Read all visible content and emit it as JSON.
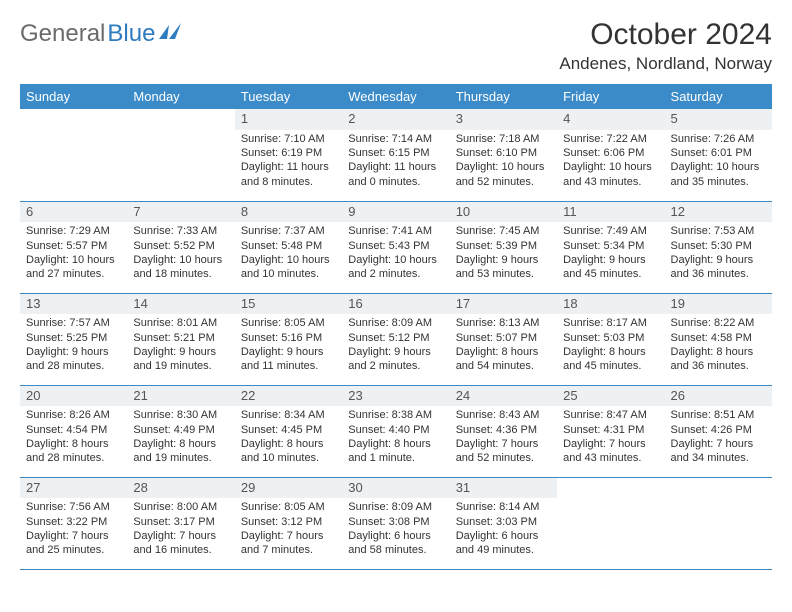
{
  "logo": {
    "word1": "General",
    "word2": "Blue"
  },
  "title": "October 2024",
  "location": "Andenes, Nordland, Norway",
  "colors": {
    "header_bg": "#3b8bc9",
    "header_text": "#ffffff",
    "daynum_bg": "#eef1f3",
    "border": "#3b8bc9",
    "logo_gray": "#6b6b6b",
    "logo_blue": "#2f7bbf",
    "text": "#333333"
  },
  "calendar": {
    "type": "table",
    "columns": [
      "Sunday",
      "Monday",
      "Tuesday",
      "Wednesday",
      "Thursday",
      "Friday",
      "Saturday"
    ],
    "weeks": [
      [
        null,
        null,
        {
          "n": "1",
          "sr": "7:10 AM",
          "ss": "6:19 PM",
          "dl": "11 hours and 8 minutes."
        },
        {
          "n": "2",
          "sr": "7:14 AM",
          "ss": "6:15 PM",
          "dl": "11 hours and 0 minutes."
        },
        {
          "n": "3",
          "sr": "7:18 AM",
          "ss": "6:10 PM",
          "dl": "10 hours and 52 minutes."
        },
        {
          "n": "4",
          "sr": "7:22 AM",
          "ss": "6:06 PM",
          "dl": "10 hours and 43 minutes."
        },
        {
          "n": "5",
          "sr": "7:26 AM",
          "ss": "6:01 PM",
          "dl": "10 hours and 35 minutes."
        }
      ],
      [
        {
          "n": "6",
          "sr": "7:29 AM",
          "ss": "5:57 PM",
          "dl": "10 hours and 27 minutes."
        },
        {
          "n": "7",
          "sr": "7:33 AM",
          "ss": "5:52 PM",
          "dl": "10 hours and 18 minutes."
        },
        {
          "n": "8",
          "sr": "7:37 AM",
          "ss": "5:48 PM",
          "dl": "10 hours and 10 minutes."
        },
        {
          "n": "9",
          "sr": "7:41 AM",
          "ss": "5:43 PM",
          "dl": "10 hours and 2 minutes."
        },
        {
          "n": "10",
          "sr": "7:45 AM",
          "ss": "5:39 PM",
          "dl": "9 hours and 53 minutes."
        },
        {
          "n": "11",
          "sr": "7:49 AM",
          "ss": "5:34 PM",
          "dl": "9 hours and 45 minutes."
        },
        {
          "n": "12",
          "sr": "7:53 AM",
          "ss": "5:30 PM",
          "dl": "9 hours and 36 minutes."
        }
      ],
      [
        {
          "n": "13",
          "sr": "7:57 AM",
          "ss": "5:25 PM",
          "dl": "9 hours and 28 minutes."
        },
        {
          "n": "14",
          "sr": "8:01 AM",
          "ss": "5:21 PM",
          "dl": "9 hours and 19 minutes."
        },
        {
          "n": "15",
          "sr": "8:05 AM",
          "ss": "5:16 PM",
          "dl": "9 hours and 11 minutes."
        },
        {
          "n": "16",
          "sr": "8:09 AM",
          "ss": "5:12 PM",
          "dl": "9 hours and 2 minutes."
        },
        {
          "n": "17",
          "sr": "8:13 AM",
          "ss": "5:07 PM",
          "dl": "8 hours and 54 minutes."
        },
        {
          "n": "18",
          "sr": "8:17 AM",
          "ss": "5:03 PM",
          "dl": "8 hours and 45 minutes."
        },
        {
          "n": "19",
          "sr": "8:22 AM",
          "ss": "4:58 PM",
          "dl": "8 hours and 36 minutes."
        }
      ],
      [
        {
          "n": "20",
          "sr": "8:26 AM",
          "ss": "4:54 PM",
          "dl": "8 hours and 28 minutes."
        },
        {
          "n": "21",
          "sr": "8:30 AM",
          "ss": "4:49 PM",
          "dl": "8 hours and 19 minutes."
        },
        {
          "n": "22",
          "sr": "8:34 AM",
          "ss": "4:45 PM",
          "dl": "8 hours and 10 minutes."
        },
        {
          "n": "23",
          "sr": "8:38 AM",
          "ss": "4:40 PM",
          "dl": "8 hours and 1 minute."
        },
        {
          "n": "24",
          "sr": "8:43 AM",
          "ss": "4:36 PM",
          "dl": "7 hours and 52 minutes."
        },
        {
          "n": "25",
          "sr": "8:47 AM",
          "ss": "4:31 PM",
          "dl": "7 hours and 43 minutes."
        },
        {
          "n": "26",
          "sr": "8:51 AM",
          "ss": "4:26 PM",
          "dl": "7 hours and 34 minutes."
        }
      ],
      [
        {
          "n": "27",
          "sr": "7:56 AM",
          "ss": "3:22 PM",
          "dl": "7 hours and 25 minutes."
        },
        {
          "n": "28",
          "sr": "8:00 AM",
          "ss": "3:17 PM",
          "dl": "7 hours and 16 minutes."
        },
        {
          "n": "29",
          "sr": "8:05 AM",
          "ss": "3:12 PM",
          "dl": "7 hours and 7 minutes."
        },
        {
          "n": "30",
          "sr": "8:09 AM",
          "ss": "3:08 PM",
          "dl": "6 hours and 58 minutes."
        },
        {
          "n": "31",
          "sr": "8:14 AM",
          "ss": "3:03 PM",
          "dl": "6 hours and 49 minutes."
        },
        null,
        null
      ]
    ],
    "labels": {
      "sunrise": "Sunrise:",
      "sunset": "Sunset:",
      "daylight": "Daylight:"
    }
  }
}
